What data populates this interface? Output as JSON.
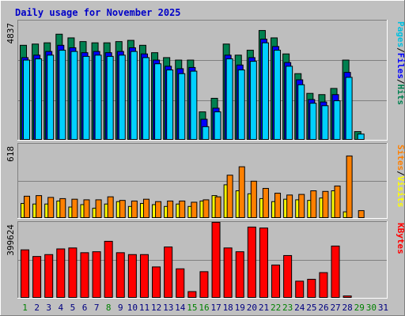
{
  "chart_data": {
    "type": "bar",
    "title": "Daily usage for November 2025",
    "colors": {
      "background": "#c0c0c0",
      "plot": "#bebebe",
      "title": "#0000c8",
      "hits": "#008050",
      "files": "#0000ff",
      "pages": "#00d0ff",
      "visits": "#ffff00",
      "sites": "#ff8000",
      "kbytes": "#ff0000",
      "weekend_label": "#008000",
      "weekday_label": "#000080"
    },
    "days": [
      "1",
      "2",
      "3",
      "4",
      "5",
      "6",
      "7",
      "8",
      "9",
      "10",
      "11",
      "12",
      "13",
      "14",
      "15",
      "16",
      "17",
      "18",
      "19",
      "20",
      "21",
      "22",
      "23",
      "24",
      "25",
      "26",
      "27",
      "28",
      "29",
      "30",
      "31"
    ],
    "weekend_days": [
      1,
      8,
      15,
      16,
      22,
      23,
      29,
      30
    ],
    "panels": [
      {
        "name": "hits-files-pages",
        "ymax_label": "4837",
        "ymax": 4837,
        "legend": [
          "Pages",
          "/",
          "Files",
          "/",
          "Hits"
        ],
        "legend_colors": [
          "#00c0e0",
          "#000000",
          "#0000ff",
          "#000000",
          "#008050"
        ],
        "series": [
          {
            "name": "Hits",
            "values": [
              3850,
              3900,
              3950,
              4300,
              4150,
              4000,
              3950,
              3950,
              4000,
              4050,
              3850,
              3550,
              3350,
              3250,
              3250,
              1150,
              1700,
              3900,
              3450,
              3650,
              4450,
              4150,
              3500,
              2700,
              1900,
              1850,
              2100,
              3250,
              350,
              0,
              0
            ]
          },
          {
            "name": "Files",
            "values": [
              3350,
              3450,
              3600,
              3850,
              3750,
              3550,
              3600,
              3550,
              3600,
              3750,
              3500,
              3250,
              3000,
              2900,
              2950,
              850,
              1300,
              3450,
              3050,
              3350,
              4100,
              3800,
              3150,
              2450,
              1650,
              1550,
              1850,
              2750,
              0,
              0,
              0
            ]
          },
          {
            "name": "Pages",
            "values": [
              3250,
              3300,
              3450,
              3650,
              3600,
              3400,
              3450,
              3400,
              3450,
              3600,
              3350,
              3100,
              2850,
              2700,
              2800,
              550,
              1150,
              3300,
              2850,
              3200,
              3950,
              3650,
              3000,
              2250,
              1500,
              1400,
              1600,
              2550,
              250,
              0,
              0
            ]
          }
        ]
      },
      {
        "name": "visits-sites",
        "ymax_label": "618",
        "ymax": 618,
        "legend": [
          "Sites",
          "/",
          "Visits"
        ],
        "legend_colors": [
          "#ff8000",
          "#000000",
          "#ffff00"
        ],
        "series": [
          {
            "name": "Visits",
            "values": [
              125,
              120,
              120,
              145,
              95,
              115,
              85,
              120,
              140,
              100,
              125,
              115,
              100,
              120,
              100,
              145,
              190,
              280,
              230,
              205,
              165,
              140,
              160,
              155,
              150,
              170,
              230,
              55,
              0,
              0,
              0
            ]
          },
          {
            "name": "Sites",
            "values": [
              185,
              190,
              175,
              165,
              160,
              155,
              155,
              180,
              150,
              145,
              160,
              140,
              145,
              145,
              135,
              155,
              180,
              360,
              430,
              310,
              250,
              210,
              195,
              200,
              230,
              225,
              270,
              520,
              65,
              0,
              0
            ]
          }
        ]
      },
      {
        "name": "kbytes",
        "ymax_label": "399624",
        "ymax": 399624,
        "legend": [
          "KBytes"
        ],
        "legend_colors": [
          "#ff0000"
        ],
        "series": [
          {
            "name": "KBytes",
            "values": [
              255000,
              220000,
              230000,
              260000,
              265000,
              240000,
              245000,
              300000,
              240000,
              230000,
              230000,
              165000,
              270000,
              155000,
              35000,
              140000,
              400000,
              265000,
              245000,
              375000,
              370000,
              175000,
              225000,
              90000,
              100000,
              135000,
              275000,
              12000,
              0,
              0,
              0
            ]
          }
        ]
      }
    ]
  }
}
